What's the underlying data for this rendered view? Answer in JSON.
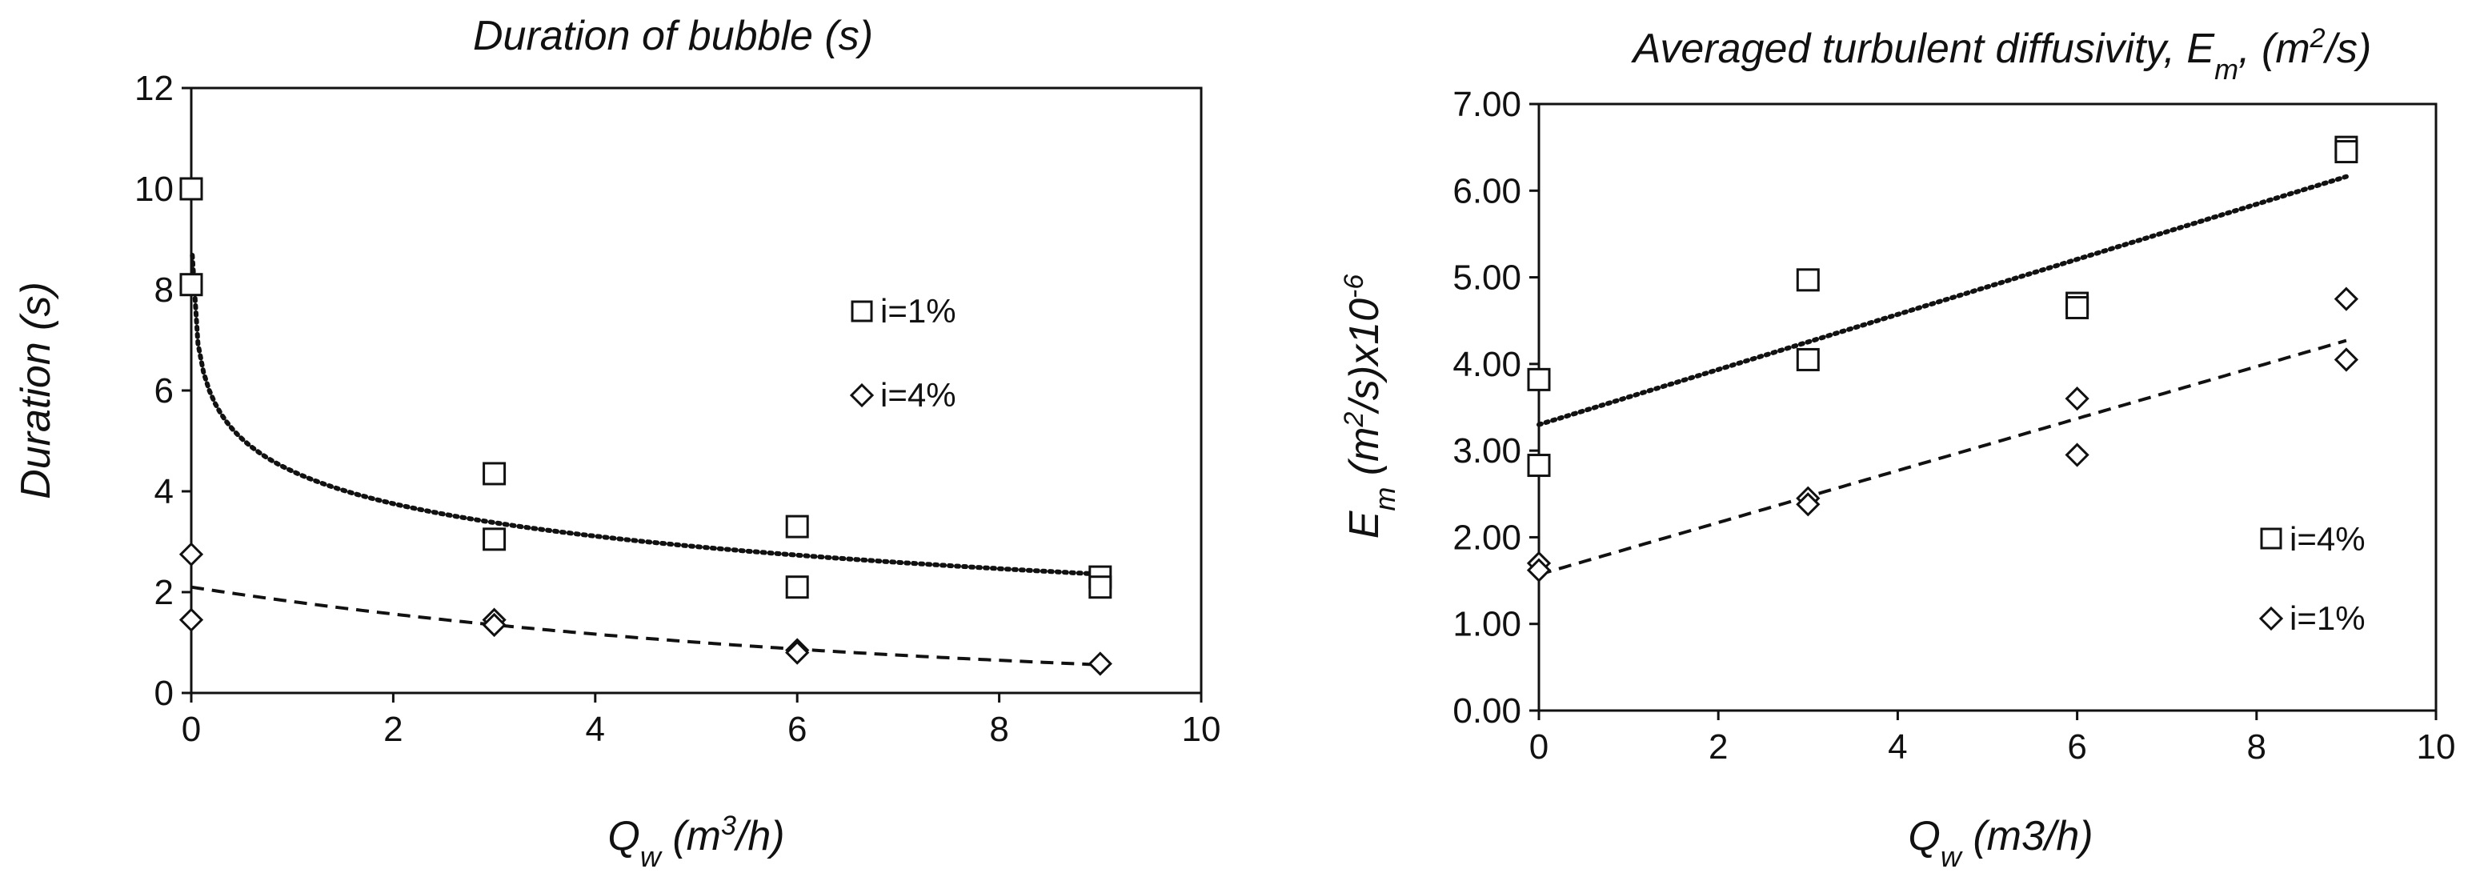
{
  "chart_data": [
    {
      "type": "scatter",
      "title": "Duration of bubble (s)",
      "xlabel": "Q",
      "xlabel_sub": "w",
      "xlabel_unit_pre": " (m",
      "xlabel_unit_sup": "3",
      "xlabel_unit_post": "/h)",
      "ylabel": "Duration (s)",
      "xlim": [
        0,
        10
      ],
      "ylim": [
        0,
        12
      ],
      "xticks": [
        0,
        2,
        4,
        6,
        8,
        10
      ],
      "yticks": [
        0,
        2,
        4,
        6,
        8,
        10,
        12
      ],
      "ytick_decimals": 0,
      "series": [
        {
          "name": "i=1%",
          "marker": "square",
          "points": [
            [
              0,
              10.0
            ],
            [
              0,
              8.1
            ],
            [
              3,
              4.35
            ],
            [
              3,
              3.05
            ],
            [
              6,
              3.3
            ],
            [
              6,
              2.1
            ],
            [
              9,
              2.3
            ],
            [
              9,
              2.1
            ]
          ],
          "trend": {
            "type": "log",
            "style": "dotted",
            "coef": [
              -0.93,
              4.4
            ],
            "x_range": [
              0.01,
              9
            ]
          }
        },
        {
          "name": "i=4%",
          "marker": "diamond",
          "points": [
            [
              0,
              2.75
            ],
            [
              0,
              1.45
            ],
            [
              3,
              1.45
            ],
            [
              3,
              1.35
            ],
            [
              6,
              0.85
            ],
            [
              6,
              0.8
            ],
            [
              9,
              0.58
            ]
          ],
          "trend": {
            "type": "exp",
            "style": "dashed",
            "coef": [
              2.1,
              -0.147
            ],
            "x_range": [
              0,
              9
            ]
          }
        }
      ]
    },
    {
      "type": "scatter",
      "title_main": "Averaged turbulent diffusivity, E",
      "title_sub": "m",
      "title_mid": ", (m",
      "title_sup": "2",
      "title_end": "/s)",
      "xlabel": "Q",
      "xlabel_sub": "w",
      "xlabel_unit": " (m3/h)",
      "ylabel_main": "E",
      "ylabel_sub": "m",
      "ylabel_mid": " (m",
      "ylabel_sup1": "2",
      "ylabel_mid2": "/s)x10",
      "ylabel_sup2": "-6",
      "xlim": [
        0,
        10
      ],
      "ylim": [
        0,
        7
      ],
      "xticks": [
        0,
        2,
        4,
        6,
        8,
        10
      ],
      "yticks": [
        0,
        1,
        2,
        3,
        4,
        5,
        6,
        7
      ],
      "ytick_decimals": 2,
      "series": [
        {
          "name": "i=4%",
          "marker": "square",
          "points": [
            [
              0,
              3.82
            ],
            [
              0,
              2.83
            ],
            [
              3,
              4.97
            ],
            [
              3,
              4.05
            ],
            [
              6,
              4.7
            ],
            [
              6,
              4.65
            ],
            [
              9,
              6.5
            ],
            [
              9,
              6.45
            ]
          ],
          "trend": {
            "type": "linear",
            "style": "dotted",
            "coef": [
              0.318,
              3.3
            ],
            "x_range": [
              0,
              9
            ]
          }
        },
        {
          "name": "i=1%",
          "marker": "diamond",
          "points": [
            [
              0,
              1.7
            ],
            [
              0,
              1.62
            ],
            [
              3,
              2.45
            ],
            [
              3,
              2.38
            ],
            [
              6,
              3.6
            ],
            [
              6,
              2.95
            ],
            [
              9,
              4.75
            ],
            [
              9,
              4.05
            ]
          ],
          "trend": {
            "type": "linear",
            "style": "dashed",
            "coef": [
              0.3,
              1.57
            ],
            "x_range": [
              0,
              9
            ]
          }
        }
      ]
    }
  ]
}
